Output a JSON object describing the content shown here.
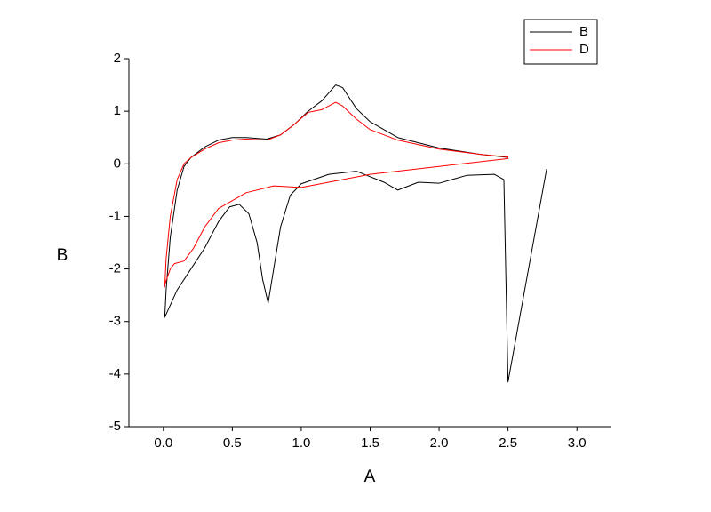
{
  "chart_data": {
    "type": "line",
    "x_label": "A",
    "y_label": "B",
    "xlim": [
      -0.25,
      3.25
    ],
    "xticks": [
      {
        "value": 0,
        "label": "0.0"
      },
      {
        "value": 0.5,
        "label": "0.5"
      },
      {
        "value": 1,
        "label": "1.0"
      },
      {
        "value": 1.5,
        "label": "1.5"
      },
      {
        "value": 2,
        "label": "2.0"
      },
      {
        "value": 2.5,
        "label": "2.5"
      },
      {
        "value": 3,
        "label": "3.0"
      }
    ],
    "ylim": [
      -5,
      2
    ],
    "yticks": [
      -5,
      -4,
      -3,
      -2,
      -1,
      0,
      1,
      2
    ],
    "legend": "upper right",
    "series": [
      {
        "name": "B",
        "color": "#000000",
        "x": [
          2.78,
          2.5,
          2.47,
          2.4,
          2.2,
          2.0,
          1.85,
          1.7,
          1.6,
          1.4,
          1.2,
          1.0,
          0.92,
          0.85,
          0.8,
          0.76,
          0.72,
          0.68,
          0.62,
          0.55,
          0.48,
          0.4,
          0.3,
          0.2,
          0.1,
          0.01,
          0.02,
          0.05,
          0.1,
          0.15,
          0.2,
          0.3,
          0.4,
          0.5,
          0.6,
          0.75,
          0.85,
          0.95,
          1.05,
          1.15,
          1.25,
          1.3,
          1.4,
          1.5,
          1.7,
          2.0,
          2.3,
          2.5
        ],
        "values": [
          -0.1,
          -4.15,
          -0.3,
          -0.2,
          -0.22,
          -0.37,
          -0.35,
          -0.5,
          -0.35,
          -0.14,
          -0.2,
          -0.38,
          -0.6,
          -1.2,
          -2.0,
          -2.65,
          -2.2,
          -1.5,
          -0.95,
          -0.77,
          -0.82,
          -1.1,
          -1.6,
          -2.0,
          -2.4,
          -2.92,
          -2.4,
          -1.4,
          -0.5,
          -0.05,
          0.12,
          0.32,
          0.45,
          0.5,
          0.5,
          0.47,
          0.55,
          0.75,
          1.0,
          1.2,
          1.5,
          1.45,
          1.05,
          0.8,
          0.5,
          0.3,
          0.18,
          0.12
        ]
      },
      {
        "name": "D",
        "color": "#ff0000",
        "x": [
          0.01,
          0.02,
          0.05,
          0.1,
          0.15,
          0.2,
          0.3,
          0.4,
          0.5,
          0.6,
          0.75,
          0.85,
          0.95,
          1.05,
          1.15,
          1.25,
          1.3,
          1.4,
          1.5,
          1.7,
          2.0,
          2.3,
          2.5,
          2.5,
          2.0,
          1.5,
          1.2,
          1.0,
          0.8,
          0.6,
          0.4,
          0.3,
          0.22,
          0.15,
          0.08,
          0.05,
          0.01
        ],
        "values": [
          -2.35,
          -1.8,
          -1.0,
          -0.3,
          0.0,
          0.12,
          0.28,
          0.4,
          0.45,
          0.47,
          0.45,
          0.55,
          0.75,
          0.98,
          1.03,
          1.17,
          1.1,
          0.85,
          0.65,
          0.45,
          0.28,
          0.18,
          0.13,
          0.1,
          -0.05,
          -0.2,
          -0.35,
          -0.45,
          -0.42,
          -0.55,
          -0.85,
          -1.2,
          -1.6,
          -1.85,
          -1.9,
          -2.0,
          -2.3
        ]
      }
    ]
  }
}
